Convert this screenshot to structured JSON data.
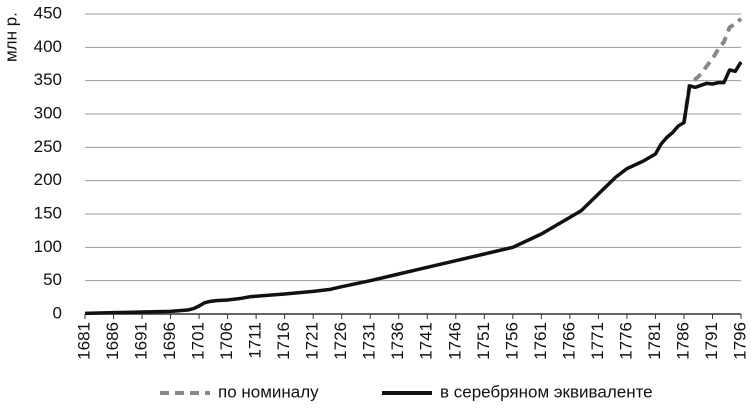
{
  "chart_data": {
    "type": "line",
    "y_label": "млн р.",
    "xlim": [
      1681,
      1796
    ],
    "xticks": [
      1681,
      1686,
      1691,
      1696,
      1701,
      1706,
      1711,
      1716,
      1721,
      1726,
      1731,
      1736,
      1741,
      1746,
      1751,
      1756,
      1761,
      1766,
      1771,
      1776,
      1781,
      1786,
      1791,
      1796
    ],
    "ylim": [
      0,
      450
    ],
    "yticks": [
      0,
      50,
      100,
      150,
      200,
      250,
      300,
      350,
      400,
      450
    ],
    "grid": true,
    "legend": "bottom",
    "series": [
      {
        "name": "по номиналу",
        "color": "#888888",
        "dashed": true,
        "x": [
          1786,
          1787,
          1788,
          1789,
          1790,
          1791,
          1792,
          1793,
          1794,
          1795,
          1796
        ],
        "values": [
          287,
          345,
          352,
          360,
          372,
          383,
          397,
          408,
          430,
          435,
          443
        ]
      },
      {
        "name": "в серебряном эквиваленте",
        "color": "#111111",
        "dashed": false,
        "x": [
          1681,
          1686,
          1691,
          1696,
          1699,
          1700,
          1701,
          1702,
          1703,
          1704,
          1706,
          1708,
          1710,
          1716,
          1721,
          1724,
          1726,
          1731,
          1736,
          1741,
          1746,
          1751,
          1756,
          1761,
          1766,
          1768,
          1771,
          1774,
          1776,
          1779,
          1781,
          1782,
          1783,
          1784,
          1785,
          1786,
          1787,
          1788,
          1789,
          1790,
          1791,
          1792,
          1793,
          1794,
          1795,
          1796
        ],
        "values": [
          1,
          2,
          3,
          4,
          6,
          8,
          12,
          17,
          19,
          20,
          21,
          23,
          26,
          30,
          34,
          37,
          41,
          50,
          60,
          70,
          80,
          90,
          100,
          120,
          145,
          155,
          180,
          205,
          218,
          230,
          240,
          255,
          265,
          272,
          282,
          287,
          342,
          340,
          343,
          346,
          345,
          347,
          347,
          366,
          364,
          378
        ]
      }
    ]
  }
}
